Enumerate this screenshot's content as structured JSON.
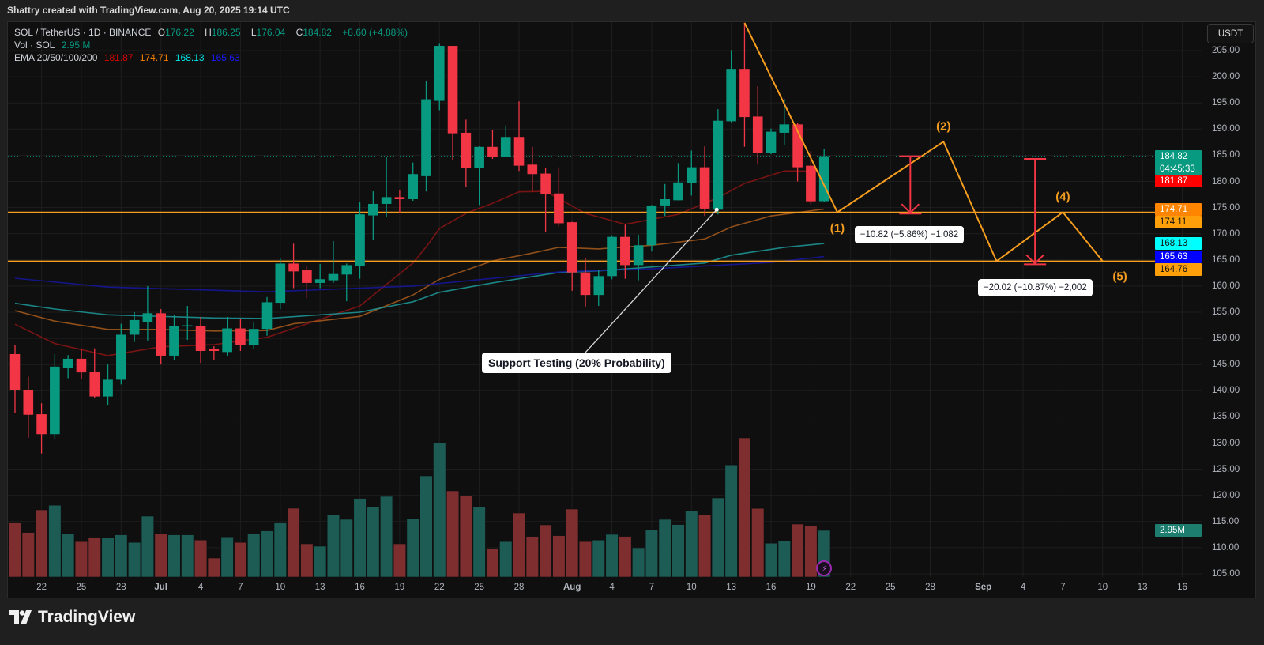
{
  "caption": "Shattry created with TradingView.com, Aug 20, 2025 19:14 UTC",
  "legend": {
    "symbol": "SOL / TetherUS · 1D · BINANCE",
    "o_label": "O",
    "o": "176.22",
    "h_label": "H",
    "h": "186.25",
    "l_label": "L",
    "l": "176.04",
    "c_label": "C",
    "c": "184.82",
    "change": "+8.60 (+4.88%)",
    "vol_label": "Vol · SOL",
    "vol": "2.95 M",
    "ema_label": "EMA 20/50/100/200",
    "ema20": "181.87",
    "ema50": "174.71",
    "ema100": "168.13",
    "ema200": "165.63"
  },
  "currency_button": "USDT",
  "brand": "TradingView",
  "colors": {
    "up": "#089981",
    "down": "#f23645",
    "vol_up": "#1d5b55",
    "vol_down": "#7e2e2f",
    "ema20": "#8b1414",
    "ema50": "#a85a1c",
    "ema100": "#1d9a9a",
    "ema200": "#1616a0",
    "drawing": "#f59d1f",
    "measure": "#f23645"
  },
  "chart_data": {
    "type": "candlestick",
    "title": "SOL / TetherUS · 1D · BINANCE",
    "ylim": [
      105,
      210
    ],
    "grid": true,
    "price_ticks": [
      "205.00",
      "200.00",
      "195.00",
      "190.00",
      "185.00",
      "180.00",
      "175.00",
      "170.00",
      "165.00",
      "160.00",
      "155.00",
      "150.00",
      "145.00",
      "140.00",
      "135.00",
      "130.00",
      "125.00",
      "120.00",
      "115.00",
      "110.00",
      "105.00"
    ],
    "x_ticks": [
      {
        "label": "22",
        "index": 2
      },
      {
        "label": "25",
        "index": 5
      },
      {
        "label": "28",
        "index": 8
      },
      {
        "label": "Jul",
        "index": 11
      },
      {
        "label": "4",
        "index": 14
      },
      {
        "label": "7",
        "index": 17
      },
      {
        "label": "10",
        "index": 20
      },
      {
        "label": "13",
        "index": 23
      },
      {
        "label": "16",
        "index": 26
      },
      {
        "label": "19",
        "index": 29
      },
      {
        "label": "22",
        "index": 32
      },
      {
        "label": "25",
        "index": 35
      },
      {
        "label": "28",
        "index": 38
      },
      {
        "label": "Aug",
        "index": 42
      },
      {
        "label": "4",
        "index": 45
      },
      {
        "label": "7",
        "index": 48
      },
      {
        "label": "10",
        "index": 51
      },
      {
        "label": "13",
        "index": 54
      },
      {
        "label": "16",
        "index": 57
      },
      {
        "label": "19",
        "index": 60
      },
      {
        "label": "22",
        "index": 63
      },
      {
        "label": "25",
        "index": 66
      },
      {
        "label": "28",
        "index": 69
      },
      {
        "label": "Sep",
        "index": 73
      },
      {
        "label": "4",
        "index": 76
      },
      {
        "label": "7",
        "index": 79
      },
      {
        "label": "10",
        "index": 82
      },
      {
        "label": "13",
        "index": 85
      },
      {
        "label": "16",
        "index": 88
      }
    ],
    "ohlc": [
      [
        147.0,
        148.7,
        135.8,
        140.1
      ],
      [
        140.2,
        142.7,
        131.0,
        135.4
      ],
      [
        135.5,
        137.6,
        128.0,
        131.7
      ],
      [
        131.7,
        147.0,
        130.7,
        144.6
      ],
      [
        144.4,
        146.8,
        142.4,
        146.1
      ],
      [
        146.1,
        147.9,
        142.2,
        143.5
      ],
      [
        143.6,
        148.1,
        138.7,
        138.9
      ],
      [
        138.9,
        145.0,
        137.2,
        142.1
      ],
      [
        142.1,
        152.8,
        141.2,
        150.7
      ],
      [
        150.7,
        155.0,
        149.3,
        153.5
      ],
      [
        153.1,
        160.0,
        149.6,
        154.8
      ],
      [
        154.8,
        155.6,
        145.0,
        146.7
      ],
      [
        146.7,
        154.5,
        145.9,
        152.4
      ],
      [
        152.3,
        156.2,
        149.7,
        152.5
      ],
      [
        152.4,
        154.1,
        145.3,
        147.6
      ],
      [
        147.9,
        148.5,
        145.9,
        147.6
      ],
      [
        147.4,
        154.1,
        146.7,
        151.9
      ],
      [
        151.9,
        153.8,
        147.6,
        148.7
      ],
      [
        148.7,
        153.0,
        147.9,
        151.8
      ],
      [
        151.8,
        157.9,
        150.5,
        156.9
      ],
      [
        156.8,
        165.4,
        155.6,
        164.3
      ],
      [
        164.3,
        168.1,
        159.6,
        162.8
      ],
      [
        163.0,
        163.9,
        157.7,
        160.6
      ],
      [
        160.6,
        164.2,
        159.6,
        161.3
      ],
      [
        161.1,
        168.6,
        160.6,
        162.3
      ],
      [
        162.2,
        164.3,
        157.1,
        164.0
      ],
      [
        163.9,
        176.0,
        161.4,
        173.7
      ],
      [
        173.5,
        178.1,
        168.8,
        175.7
      ],
      [
        175.7,
        184.7,
        173.2,
        177.0
      ],
      [
        177.0,
        178.4,
        174.0,
        176.6
      ],
      [
        176.6,
        183.6,
        176.3,
        181.4
      ],
      [
        181.0,
        199.2,
        178.1,
        195.7
      ],
      [
        195.4,
        206.3,
        193.6,
        205.9
      ],
      [
        205.9,
        205.9,
        184.0,
        189.2
      ],
      [
        189.3,
        191.8,
        179.0,
        182.6
      ],
      [
        182.6,
        186.7,
        175.5,
        186.6
      ],
      [
        186.6,
        189.8,
        184.3,
        184.7
      ],
      [
        184.7,
        190.7,
        184.6,
        188.5
      ],
      [
        188.5,
        195.3,
        182.0,
        183.0
      ],
      [
        183.2,
        186.6,
        178.1,
        181.4
      ],
      [
        181.5,
        182.6,
        170.3,
        177.5
      ],
      [
        177.7,
        182.7,
        171.4,
        172.0
      ],
      [
        172.2,
        172.3,
        159.1,
        162.6
      ],
      [
        162.6,
        165.4,
        156.1,
        158.3
      ],
      [
        158.3,
        163.0,
        156.2,
        161.9
      ],
      [
        161.9,
        169.7,
        161.3,
        169.4
      ],
      [
        169.4,
        171.7,
        161.4,
        164.0
      ],
      [
        164.0,
        169.8,
        161.1,
        167.8
      ],
      [
        167.8,
        175.5,
        166.6,
        175.4
      ],
      [
        175.4,
        179.5,
        173.4,
        176.6
      ],
      [
        176.4,
        183.5,
        176.4,
        179.8
      ],
      [
        179.7,
        185.9,
        177.3,
        182.7
      ],
      [
        182.7,
        186.7,
        173.4,
        174.8
      ],
      [
        174.6,
        193.8,
        173.7,
        191.6
      ],
      [
        191.5,
        205.1,
        191.3,
        201.5
      ],
      [
        201.5,
        210.3,
        186.6,
        192.3
      ],
      [
        192.4,
        198.2,
        183.2,
        185.5
      ],
      [
        185.5,
        190.1,
        185.2,
        189.5
      ],
      [
        189.3,
        195.8,
        187.0,
        190.9
      ],
      [
        190.9,
        191.2,
        180.0,
        182.7
      ],
      [
        183.0,
        185.8,
        175.6,
        176.2
      ],
      [
        176.22,
        186.25,
        176.04,
        184.82
      ]
    ],
    "volume_millions": [
      3.42,
      2.82,
      4.25,
      4.54,
      2.75,
      2.24,
      2.52,
      2.49,
      2.67,
      2.19,
      3.85,
      2.75,
      2.67,
      2.67,
      2.34,
      1.2,
      2.54,
      2.19,
      2.72,
      2.92,
      3.42,
      4.35,
      2.1,
      1.95,
      3.95,
      3.65,
      4.97,
      4.44,
      5.1,
      2.1,
      3.7,
      6.4,
      8.5,
      5.45,
      5.15,
      4.44,
      1.8,
      2.24,
      4.05,
      2.57,
      3.3,
      2.62,
      4.3,
      2.24,
      2.34,
      2.7,
      2.57,
      1.85,
      3.0,
      3.65,
      3.32,
      4.19,
      3.95,
      5.0,
      7.09,
      8.8,
      4.34,
      2.14,
      2.29,
      3.35,
      3.25,
      2.95
    ],
    "ema": [
      {
        "name": "EMA 20",
        "color_key": "ema20",
        "points": [
          [
            0,
            152.7
          ],
          [
            3,
            149.0
          ],
          [
            7,
            146.7
          ],
          [
            11,
            148.4
          ],
          [
            15,
            148.8
          ],
          [
            19,
            150.2
          ],
          [
            26,
            156.2
          ],
          [
            28,
            160.3
          ],
          [
            30,
            164.4
          ],
          [
            31,
            167.5
          ],
          [
            32,
            171.0
          ],
          [
            34,
            173.9
          ],
          [
            36,
            175.8
          ],
          [
            38,
            178.0
          ],
          [
            40,
            178.1
          ],
          [
            43,
            173.9
          ],
          [
            46,
            171.8
          ],
          [
            50,
            173.7
          ],
          [
            53,
            176.9
          ],
          [
            55,
            179.6
          ],
          [
            58,
            182.0
          ],
          [
            59,
            182.0
          ],
          [
            61,
            181.87
          ]
        ]
      },
      {
        "name": "EMA 50",
        "color_key": "ema50",
        "points": [
          [
            0,
            155.3
          ],
          [
            3,
            153.3
          ],
          [
            7,
            151.7
          ],
          [
            11,
            151.7
          ],
          [
            15,
            151.4
          ],
          [
            19,
            151.5
          ],
          [
            21,
            152.8
          ],
          [
            26,
            154.2
          ],
          [
            30,
            158.3
          ],
          [
            32,
            161.3
          ],
          [
            36,
            164.8
          ],
          [
            39,
            166.3
          ],
          [
            41,
            167.4
          ],
          [
            44,
            167.1
          ],
          [
            48,
            167.8
          ],
          [
            52,
            169.0
          ],
          [
            54,
            171.3
          ],
          [
            57,
            173.4
          ],
          [
            61,
            174.71
          ]
        ]
      },
      {
        "name": "EMA 100",
        "color_key": "ema100",
        "points": [
          [
            0,
            156.7
          ],
          [
            3,
            155.6
          ],
          [
            7,
            154.5
          ],
          [
            11,
            154.2
          ],
          [
            15,
            153.9
          ],
          [
            19,
            153.8
          ],
          [
            26,
            155.0
          ],
          [
            30,
            157.0
          ],
          [
            32,
            158.8
          ],
          [
            36,
            160.6
          ],
          [
            41,
            162.6
          ],
          [
            44,
            162.9
          ],
          [
            52,
            164.4
          ],
          [
            54,
            165.9
          ],
          [
            58,
            167.4
          ],
          [
            61,
            168.13
          ]
        ]
      },
      {
        "name": "EMA 200",
        "color_key": "ema200",
        "points": [
          [
            0,
            161.5
          ],
          [
            7,
            159.8
          ],
          [
            15,
            159.2
          ],
          [
            19,
            158.9
          ],
          [
            30,
            160.0
          ],
          [
            41,
            162.7
          ],
          [
            48,
            163.3
          ],
          [
            57,
            164.5
          ],
          [
            61,
            165.63
          ]
        ]
      }
    ],
    "last_price": 184.82,
    "horizontal_levels": [
      174.11,
      164.76
    ],
    "zigzag": [
      [
        55,
        210.3
      ],
      [
        62,
        174.11
      ],
      [
        70,
        187.6
      ],
      [
        74,
        164.76
      ],
      [
        79,
        174.11
      ],
      [
        82,
        164.76
      ]
    ],
    "wave_labels": [
      {
        "text": "(1)",
        "index": 62,
        "price": 171.0
      },
      {
        "text": "(2)",
        "index": 70,
        "price": 190.5
      },
      {
        "text": "(4)",
        "index": 79,
        "price": 177.0
      },
      {
        "text": "(5)",
        "index": 83.3,
        "price": 161.8
      }
    ],
    "measures": [
      {
        "index": 67.5,
        "from": 184.82,
        "to": 174.0,
        "label": "−10.82 (−5.86%) −1,082",
        "label_index": 63.3,
        "label_price": 171.5
      },
      {
        "index": 76.9,
        "from": 184.3,
        "to": 164.3,
        "label": "−20.02 (−10.87%) −2,002",
        "label_index": 72.6,
        "label_price": 161.3
      }
    ],
    "callout": {
      "text": "Support Testing (20% Probability)",
      "anchor_index": 52.9,
      "anchor_price": 174.6,
      "label_index": 35.2,
      "label_price": 147.3
    },
    "badges": [
      {
        "value": "184.82",
        "sub": "04:45:33",
        "price": 184.82,
        "bg": "#089981",
        "fg": "#ffffff"
      },
      {
        "value": "181.87",
        "price": 181.87,
        "bg": "#ff0000",
        "fg": "#ffffff"
      },
      {
        "value": "174.71",
        "price": 174.71,
        "bg": "#ff8400",
        "fg": "#ffffff"
      },
      {
        "value": "174.11",
        "price": 174.11,
        "bg": "#ff9f0a",
        "fg": "#131313"
      },
      {
        "value": "168.13",
        "price": 168.13,
        "bg": "#00ffff",
        "fg": "#131313"
      },
      {
        "value": "165.63",
        "price": 165.63,
        "bg": "#0000ff",
        "fg": "#ffffff"
      },
      {
        "value": "164.76",
        "price": 164.76,
        "bg": "#ff9f0a",
        "fg": "#131313"
      }
    ],
    "volume_badge": {
      "value": "2.95M",
      "bg": "#1d7d6f",
      "fg": "#ffffff"
    }
  }
}
